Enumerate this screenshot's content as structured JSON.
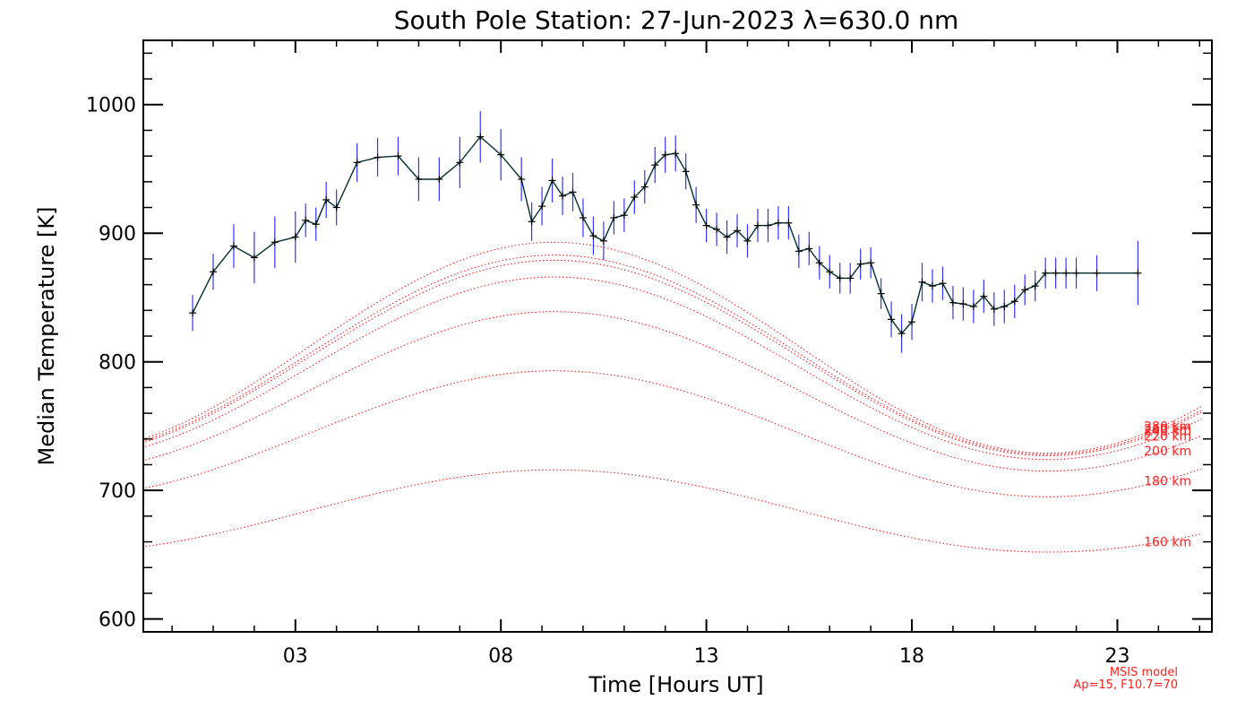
{
  "chart_data": {
    "type": "line",
    "title": "South Pole Station: 27-Jun-2023 λ=630.0 nm",
    "xlabel": "Time [Hours UT]",
    "ylabel": "Median Temperature [K]",
    "xlim": [
      -0.7,
      25.3
    ],
    "ylim": [
      590,
      1050
    ],
    "xticks": [
      3,
      8,
      13,
      18,
      23
    ],
    "xtick_labels": [
      "03",
      "08",
      "13",
      "18",
      "23"
    ],
    "yticks": [
      600,
      700,
      800,
      900,
      1000
    ],
    "ytick_labels": [
      "600",
      "700",
      "800",
      "900",
      "1000"
    ],
    "colors": {
      "data_line": "#003030",
      "error_bar": "#3333ff",
      "marker": "#000000",
      "model": "#ff2020"
    },
    "measured": {
      "name": "Median temperature",
      "x": [
        0.5,
        1.0,
        1.5,
        2.0,
        2.5,
        3.0,
        3.25,
        3.5,
        3.75,
        4.0,
        4.5,
        5.0,
        5.5,
        6.0,
        6.5,
        7.0,
        7.5,
        8.0,
        8.5,
        8.75,
        9.0,
        9.25,
        9.5,
        9.75,
        10.0,
        10.25,
        10.5,
        10.75,
        11.0,
        11.25,
        11.5,
        11.75,
        12.0,
        12.25,
        12.5,
        12.75,
        13.0,
        13.25,
        13.5,
        13.75,
        14.0,
        14.25,
        14.5,
        14.75,
        15.0,
        15.25,
        15.5,
        15.75,
        16.0,
        16.25,
        16.5,
        16.75,
        17.0,
        17.25,
        17.5,
        17.75,
        18.0,
        18.25,
        18.5,
        18.75,
        19.0,
        19.25,
        19.5,
        19.75,
        20.0,
        20.25,
        20.5,
        20.75,
        21.0,
        21.25,
        21.5,
        21.75,
        22.0,
        22.5,
        23.5
      ],
      "y": [
        838,
        870,
        890,
        881,
        893,
        897,
        910,
        907,
        926,
        920,
        955,
        959,
        960,
        942,
        942,
        955,
        975,
        961,
        942,
        909,
        921,
        941,
        929,
        932,
        912,
        898,
        894,
        912,
        914,
        928,
        936,
        953,
        961,
        962,
        948,
        922,
        906,
        903,
        897,
        902,
        894,
        906,
        906,
        908,
        908,
        886,
        888,
        877,
        870,
        865,
        865,
        876,
        877,
        853,
        833,
        822,
        831,
        862,
        859,
        861,
        846,
        845,
        843,
        851,
        841,
        843,
        847,
        856,
        859,
        869,
        869,
        869,
        869,
        869,
        869
      ],
      "error": [
        14,
        14,
        17,
        20,
        20,
        20,
        13,
        13,
        14,
        14,
        15,
        15,
        15,
        17,
        17,
        20,
        20,
        20,
        17,
        15,
        15,
        17,
        15,
        15,
        15,
        15,
        15,
        13,
        13,
        13,
        13,
        14,
        14,
        14,
        14,
        14,
        13,
        13,
        13,
        13,
        13,
        13,
        13,
        13,
        13,
        13,
        13,
        13,
        13,
        12,
        12,
        12,
        12,
        12,
        14,
        15,
        14,
        15,
        13,
        13,
        13,
        13,
        13,
        13,
        13,
        13,
        13,
        12,
        12,
        12,
        12,
        12,
        12,
        14,
        25
      ]
    },
    "model": {
      "name": "MSIS model",
      "note_line1": "MSIS model",
      "note_line2": "Ap=15, F10.7=70",
      "series": [
        {
          "label": "160 km",
          "min": 652,
          "max": 716
        },
        {
          "label": "180 km",
          "min": 695,
          "max": 793
        },
        {
          "label": "200 km",
          "min": 715,
          "max": 839
        },
        {
          "label": "220 km",
          "min": 724,
          "max": 866
        },
        {
          "label": "240 km",
          "min": 727,
          "max": 879
        },
        {
          "label": "260 km",
          "min": 728,
          "max": 883
        },
        {
          "label": "280 km",
          "min": 729,
          "max": 893
        }
      ],
      "peak_hour": 9.3,
      "trough_hour": 21.3
    }
  }
}
